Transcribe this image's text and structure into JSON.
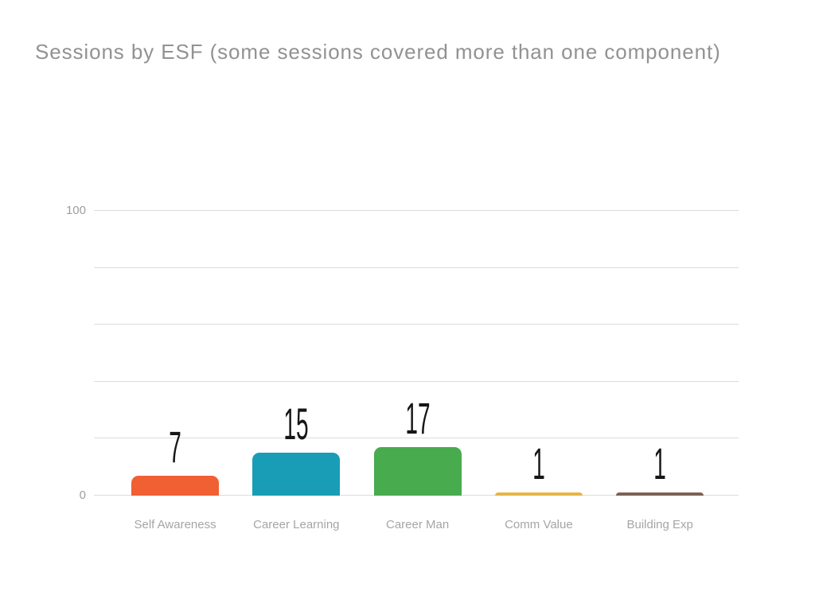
{
  "page": {
    "background": "#ffffff"
  },
  "chart_data": {
    "type": "bar",
    "title": "Sessions by ESF (some sessions covered more than one component)",
    "categories": [
      "Self Awareness",
      "Career Learning",
      "Career Man",
      "Comm Value",
      "Building Exp"
    ],
    "values": [
      7,
      15,
      17,
      1,
      1
    ],
    "bar_colors": [
      "#f06033",
      "#199db6",
      "#48ab4e",
      "#e6b544",
      "#7d6156"
    ],
    "xlabel": "",
    "ylabel": "",
    "ylim": [
      0,
      100
    ],
    "gridline_values": [
      0,
      20,
      40,
      60,
      80,
      100
    ],
    "y_tick_labels_shown": [
      "100",
      "0"
    ],
    "grid": true,
    "legend": "none",
    "value_labels_shown": true,
    "colors": {
      "title_text": "#929292",
      "axis_tick_text": "#9e9e9e",
      "category_text": "#a5a5a5",
      "gridline": "#dcdcdc",
      "value_label_text": "#161616"
    }
  }
}
